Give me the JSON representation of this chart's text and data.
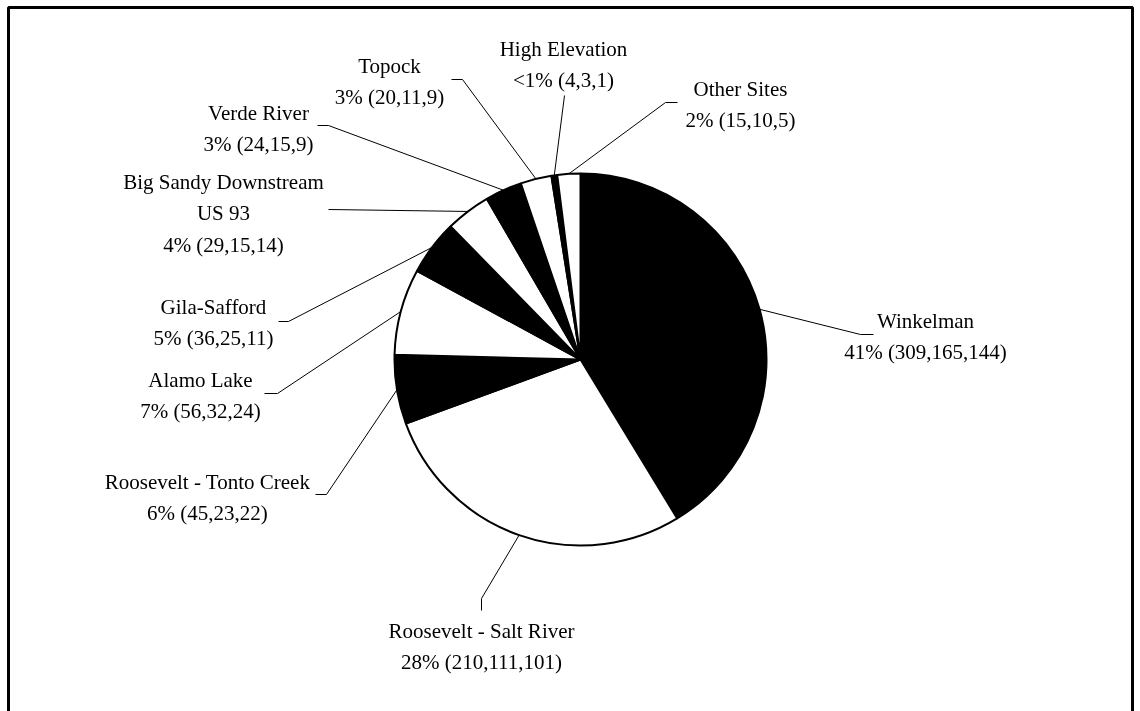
{
  "chart_data": {
    "type": "pie",
    "categories": [
      "Winkelman",
      "Roosevelt - Salt River",
      "Roosevelt - Tonto Creek",
      "Alamo Lake",
      "Gila-Safford",
      "Big Sandy Downstream\nUS 93",
      "Verde River",
      "Topock",
      "High Elevation",
      "Other Sites"
    ],
    "values": [
      41.3,
      28.1,
      6.0,
      7.5,
      4.8,
      3.9,
      3.2,
      2.7,
      0.5,
      2.0
    ],
    "value_labels": [
      "41% (309,165,144)",
      "28% (210,111,101)",
      "6% (45,23,22)",
      "7% (56,32,24)",
      "5% (36,25,11)",
      "4% (29,15,14)",
      "3% (24,15,9)",
      "3% (20,11,9)",
      "<1% (4,3,1)",
      "2% (15,10,5)"
    ],
    "colors": [
      "#000000",
      "#ffffff",
      "#000000",
      "#ffffff",
      "#000000",
      "#ffffff",
      "#000000",
      "#ffffff",
      "#000000",
      "#ffffff"
    ]
  }
}
